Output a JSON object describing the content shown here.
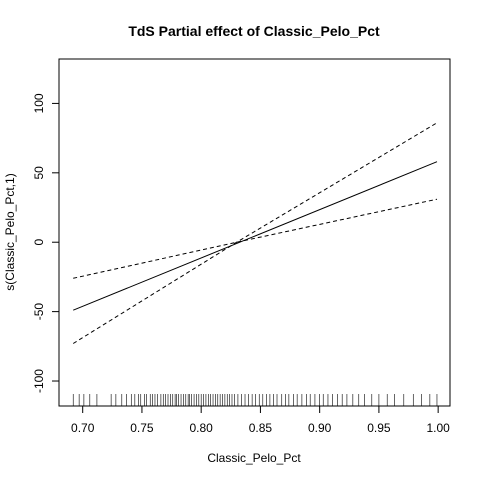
{
  "chart_data": {
    "type": "line",
    "title": "TdS Partial effect of Classic_Pelo_Pct",
    "xlabel": "Classic_Pelo_Pct",
    "ylabel": "s(Classic_Pelo_Pct,1)",
    "xlim": [
      0.68,
      1.01
    ],
    "ylim": [
      -118,
      132
    ],
    "xticks": [
      0.7,
      0.75,
      0.8,
      0.85,
      0.9,
      0.95,
      1.0
    ],
    "xtick_labels": [
      "0.70",
      "0.75",
      "0.80",
      "0.85",
      "0.90",
      "0.95",
      "1.00"
    ],
    "yticks": [
      -100,
      -50,
      0,
      50,
      100
    ],
    "ytick_labels": [
      "-100",
      "-50",
      "0",
      "50",
      "100"
    ],
    "grid": false,
    "series": [
      {
        "style": "solid",
        "x": [
          0.692,
          0.999
        ],
        "y": [
          -49,
          58
        ]
      },
      {
        "style": "dashed",
        "x": [
          0.692,
          0.83,
          0.999
        ],
        "y": [
          -73,
          0,
          86
        ]
      },
      {
        "style": "dashed",
        "x": [
          0.692,
          0.83,
          0.999
        ],
        "y": [
          -26,
          0,
          31
        ]
      }
    ],
    "rug": [
      0.692,
      0.697,
      0.701,
      0.706,
      0.712,
      0.724,
      0.728,
      0.733,
      0.737,
      0.741,
      0.744,
      0.747,
      0.749,
      0.752,
      0.754,
      0.757,
      0.759,
      0.761,
      0.763,
      0.766,
      0.768,
      0.77,
      0.772,
      0.774,
      0.776,
      0.778,
      0.779,
      0.781,
      0.783,
      0.785,
      0.787,
      0.789,
      0.79,
      0.792,
      0.794,
      0.796,
      0.798,
      0.8,
      0.802,
      0.804,
      0.806,
      0.808,
      0.81,
      0.812,
      0.814,
      0.816,
      0.818,
      0.82,
      0.822,
      0.824,
      0.826,
      0.828,
      0.831,
      0.834,
      0.837,
      0.84,
      0.843,
      0.846,
      0.849,
      0.852,
      0.855,
      0.858,
      0.861,
      0.864,
      0.868,
      0.871,
      0.874,
      0.878,
      0.881,
      0.885,
      0.889,
      0.892,
      0.896,
      0.9,
      0.903,
      0.907,
      0.911,
      0.915,
      0.919,
      0.923,
      0.928,
      0.933,
      0.938,
      0.944,
      0.95,
      0.957,
      0.963,
      0.971,
      0.979,
      0.986,
      0.993,
      0.999
    ]
  }
}
